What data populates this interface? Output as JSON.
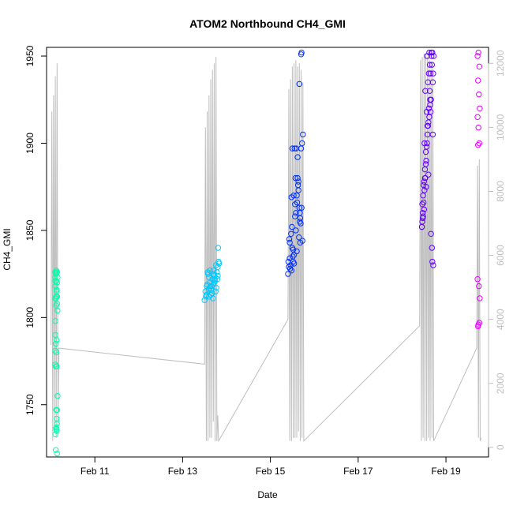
{
  "chart_data": {
    "type": "scatter",
    "title": "ATOM2 Northbound CH4_GMI",
    "xlabel": "Date",
    "ylabel": "CH4_GMI",
    "x_ticks": [
      {
        "day": 11,
        "label": "Feb 11"
      },
      {
        "day": 13,
        "label": "Feb 13"
      },
      {
        "day": 15,
        "label": "Feb 15"
      },
      {
        "day": 17,
        "label": "Feb 17"
      },
      {
        "day": 19,
        "label": "Feb 19"
      }
    ],
    "xlim_days": [
      9.9,
      19.97
    ],
    "ylim": [
      1720,
      1955
    ],
    "y_ticks": [
      1750,
      1800,
      1850,
      1900,
      1950
    ],
    "y2_ticks": [
      0,
      2000,
      4000,
      6000,
      8000,
      10000,
      12000
    ],
    "y2lim": [
      -300,
      12500
    ],
    "grid": false,
    "legend": "none",
    "series": [
      {
        "color": "#00ffaa",
        "marker": "open-circle",
        "x": [
          10.1,
          10.1,
          10.1,
          10.12,
          10.1,
          10.14,
          10.12,
          10.1,
          10.13,
          10.12,
          10.11,
          10.14,
          10.15,
          10.12,
          10.1,
          10.1,
          10.11,
          10.13,
          10.12,
          10.1,
          10.11,
          10.13,
          10.12,
          10.14,
          10.12,
          10.13,
          10.15,
          10.1,
          10.13,
          10.12,
          10.14,
          10.1,
          10.14,
          10.11,
          10.12,
          10.15,
          10.13,
          10.14,
          10.13,
          10.11,
          10.14
        ],
        "y": [
          1826,
          1823,
          1821,
          1826,
          1818,
          1820,
          1812,
          1811,
          1812,
          1827,
          1825,
          1808,
          1804,
          1807,
          1798,
          1790,
          1785,
          1787,
          1780,
          1773,
          1772,
          1772,
          1747,
          1747,
          1736,
          1735,
          1755,
          1781,
          1742,
          1737,
          1739,
          1733,
          1722,
          1724,
          1821,
          1823,
          1816,
          1812,
          1815,
          1811,
          1826
        ]
      },
      {
        "color": "#00c8ff",
        "marker": "open-circle",
        "x": [
          13.5,
          13.52,
          13.55,
          13.58,
          13.6,
          13.62,
          13.65,
          13.68,
          13.7,
          13.72,
          13.75,
          13.78,
          13.8,
          13.82,
          13.53,
          13.57,
          13.63,
          13.67,
          13.73,
          13.77,
          13.81,
          13.6,
          13.7,
          13.64,
          13.74,
          13.56,
          13.79,
          13.69,
          13.59,
          13.66,
          13.71,
          13.76,
          13.54,
          13.61,
          13.83,
          13.62,
          13.72,
          13.8
        ],
        "y": [
          1810,
          1815,
          1818,
          1825,
          1812,
          1820,
          1816,
          1822,
          1819,
          1824,
          1815,
          1826,
          1829,
          1832,
          1812,
          1826,
          1818,
          1814,
          1822,
          1817,
          1840,
          1823,
          1827,
          1813,
          1821,
          1819,
          1822,
          1811,
          1816,
          1818,
          1825,
          1830,
          1813,
          1817,
          1831,
          1827,
          1820,
          1824
        ]
      },
      {
        "color": "#0030ff",
        "marker": "open-circle",
        "x": [
          15.4,
          15.42,
          15.44,
          15.46,
          15.48,
          15.5,
          15.52,
          15.54,
          15.56,
          15.58,
          15.6,
          15.62,
          15.64,
          15.66,
          15.68,
          15.7,
          15.72,
          15.74,
          15.43,
          15.47,
          15.51,
          15.55,
          15.59,
          15.63,
          15.67,
          15.71,
          15.45,
          15.49,
          15.53,
          15.57,
          15.61,
          15.65,
          15.69,
          15.73,
          15.41,
          15.5,
          15.56,
          15.62,
          15.68,
          15.7,
          15.71,
          15.52,
          15.58,
          15.64,
          15.66,
          15.44,
          15.48,
          15.54,
          15.6,
          15.67
        ],
        "y": [
          1825,
          1829,
          1834,
          1830,
          1827,
          1840,
          1832,
          1836,
          1858,
          1860,
          1870,
          1880,
          1873,
          1863,
          1857,
          1897,
          1900,
          1905,
          1845,
          1848,
          1835,
          1897,
          1897,
          1876,
          1855,
          1863,
          1828,
          1852,
          1870,
          1880,
          1866,
          1846,
          1854,
          1844,
          1832,
          1897,
          1865,
          1892,
          1843,
          1951,
          1952,
          1839,
          1850,
          1878,
          1934,
          1843,
          1869,
          1831,
          1838,
          1860
        ]
      },
      {
        "color": "#6400ff",
        "marker": "open-circle",
        "x": [
          18.45,
          18.47,
          18.49,
          18.51,
          18.53,
          18.55,
          18.57,
          18.59,
          18.61,
          18.63,
          18.65,
          18.67,
          18.69,
          18.71,
          18.46,
          18.5,
          18.54,
          18.58,
          18.62,
          18.66,
          18.7,
          18.48,
          18.52,
          18.56,
          18.6,
          18.64,
          18.68,
          18.72,
          18.45,
          18.55,
          18.65,
          18.5,
          18.6,
          18.7,
          18.47,
          18.57,
          18.67,
          18.53,
          18.63,
          18.49,
          18.59,
          18.69,
          18.51,
          18.61,
          18.71,
          18.46,
          18.56,
          18.66,
          18.54,
          18.64,
          18.58,
          18.62,
          18.68,
          18.52,
          18.48
        ],
        "y": [
          1852,
          1860,
          1866,
          1873,
          1880,
          1890,
          1900,
          1910,
          1920,
          1930,
          1940,
          1950,
          1952,
          1940,
          1855,
          1878,
          1895,
          1905,
          1915,
          1925,
          1935,
          1870,
          1885,
          1898,
          1912,
          1922,
          1945,
          1950,
          1852,
          1875,
          1918,
          1862,
          1882,
          1905,
          1857,
          1950,
          1952,
          1930,
          1945,
          1876,
          1935,
          1832,
          1900,
          1940,
          1830,
          1865,
          1918,
          1848,
          1888,
          1925,
          1910,
          1952,
          1840,
          1880,
          1858
        ]
      },
      {
        "color": "#e600ff",
        "marker": "open-circle",
        "x": [
          19.72,
          19.74,
          19.76,
          19.73,
          19.75,
          19.77,
          19.72,
          19.74,
          19.76,
          19.73,
          19.75,
          19.77,
          19.72,
          19.74,
          19.76,
          19.73
        ],
        "y": [
          1950,
          1952,
          1944,
          1936,
          1928,
          1920,
          1915,
          1909,
          1900,
          1899,
          1818,
          1811,
          1822,
          1796,
          1797,
          1795
        ]
      }
    ],
    "right_axis_trace": {
      "color": "#bebebe",
      "x": [
        10.0,
        10.02,
        10.04,
        10.06,
        10.08,
        10.1,
        10.12,
        10.14,
        10.16,
        10.18,
        13.5,
        13.52,
        13.54,
        13.56,
        13.58,
        13.6,
        13.62,
        13.64,
        13.66,
        13.68,
        13.7,
        13.72,
        13.74,
        13.76,
        13.78,
        13.8,
        13.82,
        15.4,
        15.42,
        15.44,
        15.46,
        15.48,
        15.5,
        15.52,
        15.54,
        15.56,
        15.58,
        15.6,
        15.62,
        15.64,
        15.66,
        15.68,
        15.7,
        15.72,
        15.74,
        15.76,
        18.4,
        18.42,
        18.44,
        18.46,
        18.48,
        18.5,
        18.52,
        18.54,
        18.56,
        18.58,
        18.6,
        18.62,
        18.64,
        18.66,
        18.68,
        18.7,
        18.72,
        19.7,
        19.72,
        19.74,
        19.76,
        19.78,
        19.8
      ],
      "y": [
        3200,
        10500,
        200,
        11000,
        500,
        11600,
        300,
        12000,
        600,
        3100,
        2600,
        10000,
        200,
        10500,
        200,
        11000,
        300,
        11500,
        300,
        11800,
        800,
        12000,
        200,
        12200,
        200,
        1000,
        200,
        4000,
        11200,
        200,
        11500,
        200,
        11900,
        300,
        12000,
        300,
        12100,
        300,
        11900,
        500,
        12000,
        200,
        11800,
        300,
        11400,
        200,
        3800,
        12100,
        200,
        12200,
        300,
        12300,
        200,
        12300,
        200,
        12200,
        300,
        12100,
        200,
        12000,
        300,
        11900,
        200,
        3100,
        8800,
        300,
        9000,
        200,
        300
      ]
    }
  }
}
